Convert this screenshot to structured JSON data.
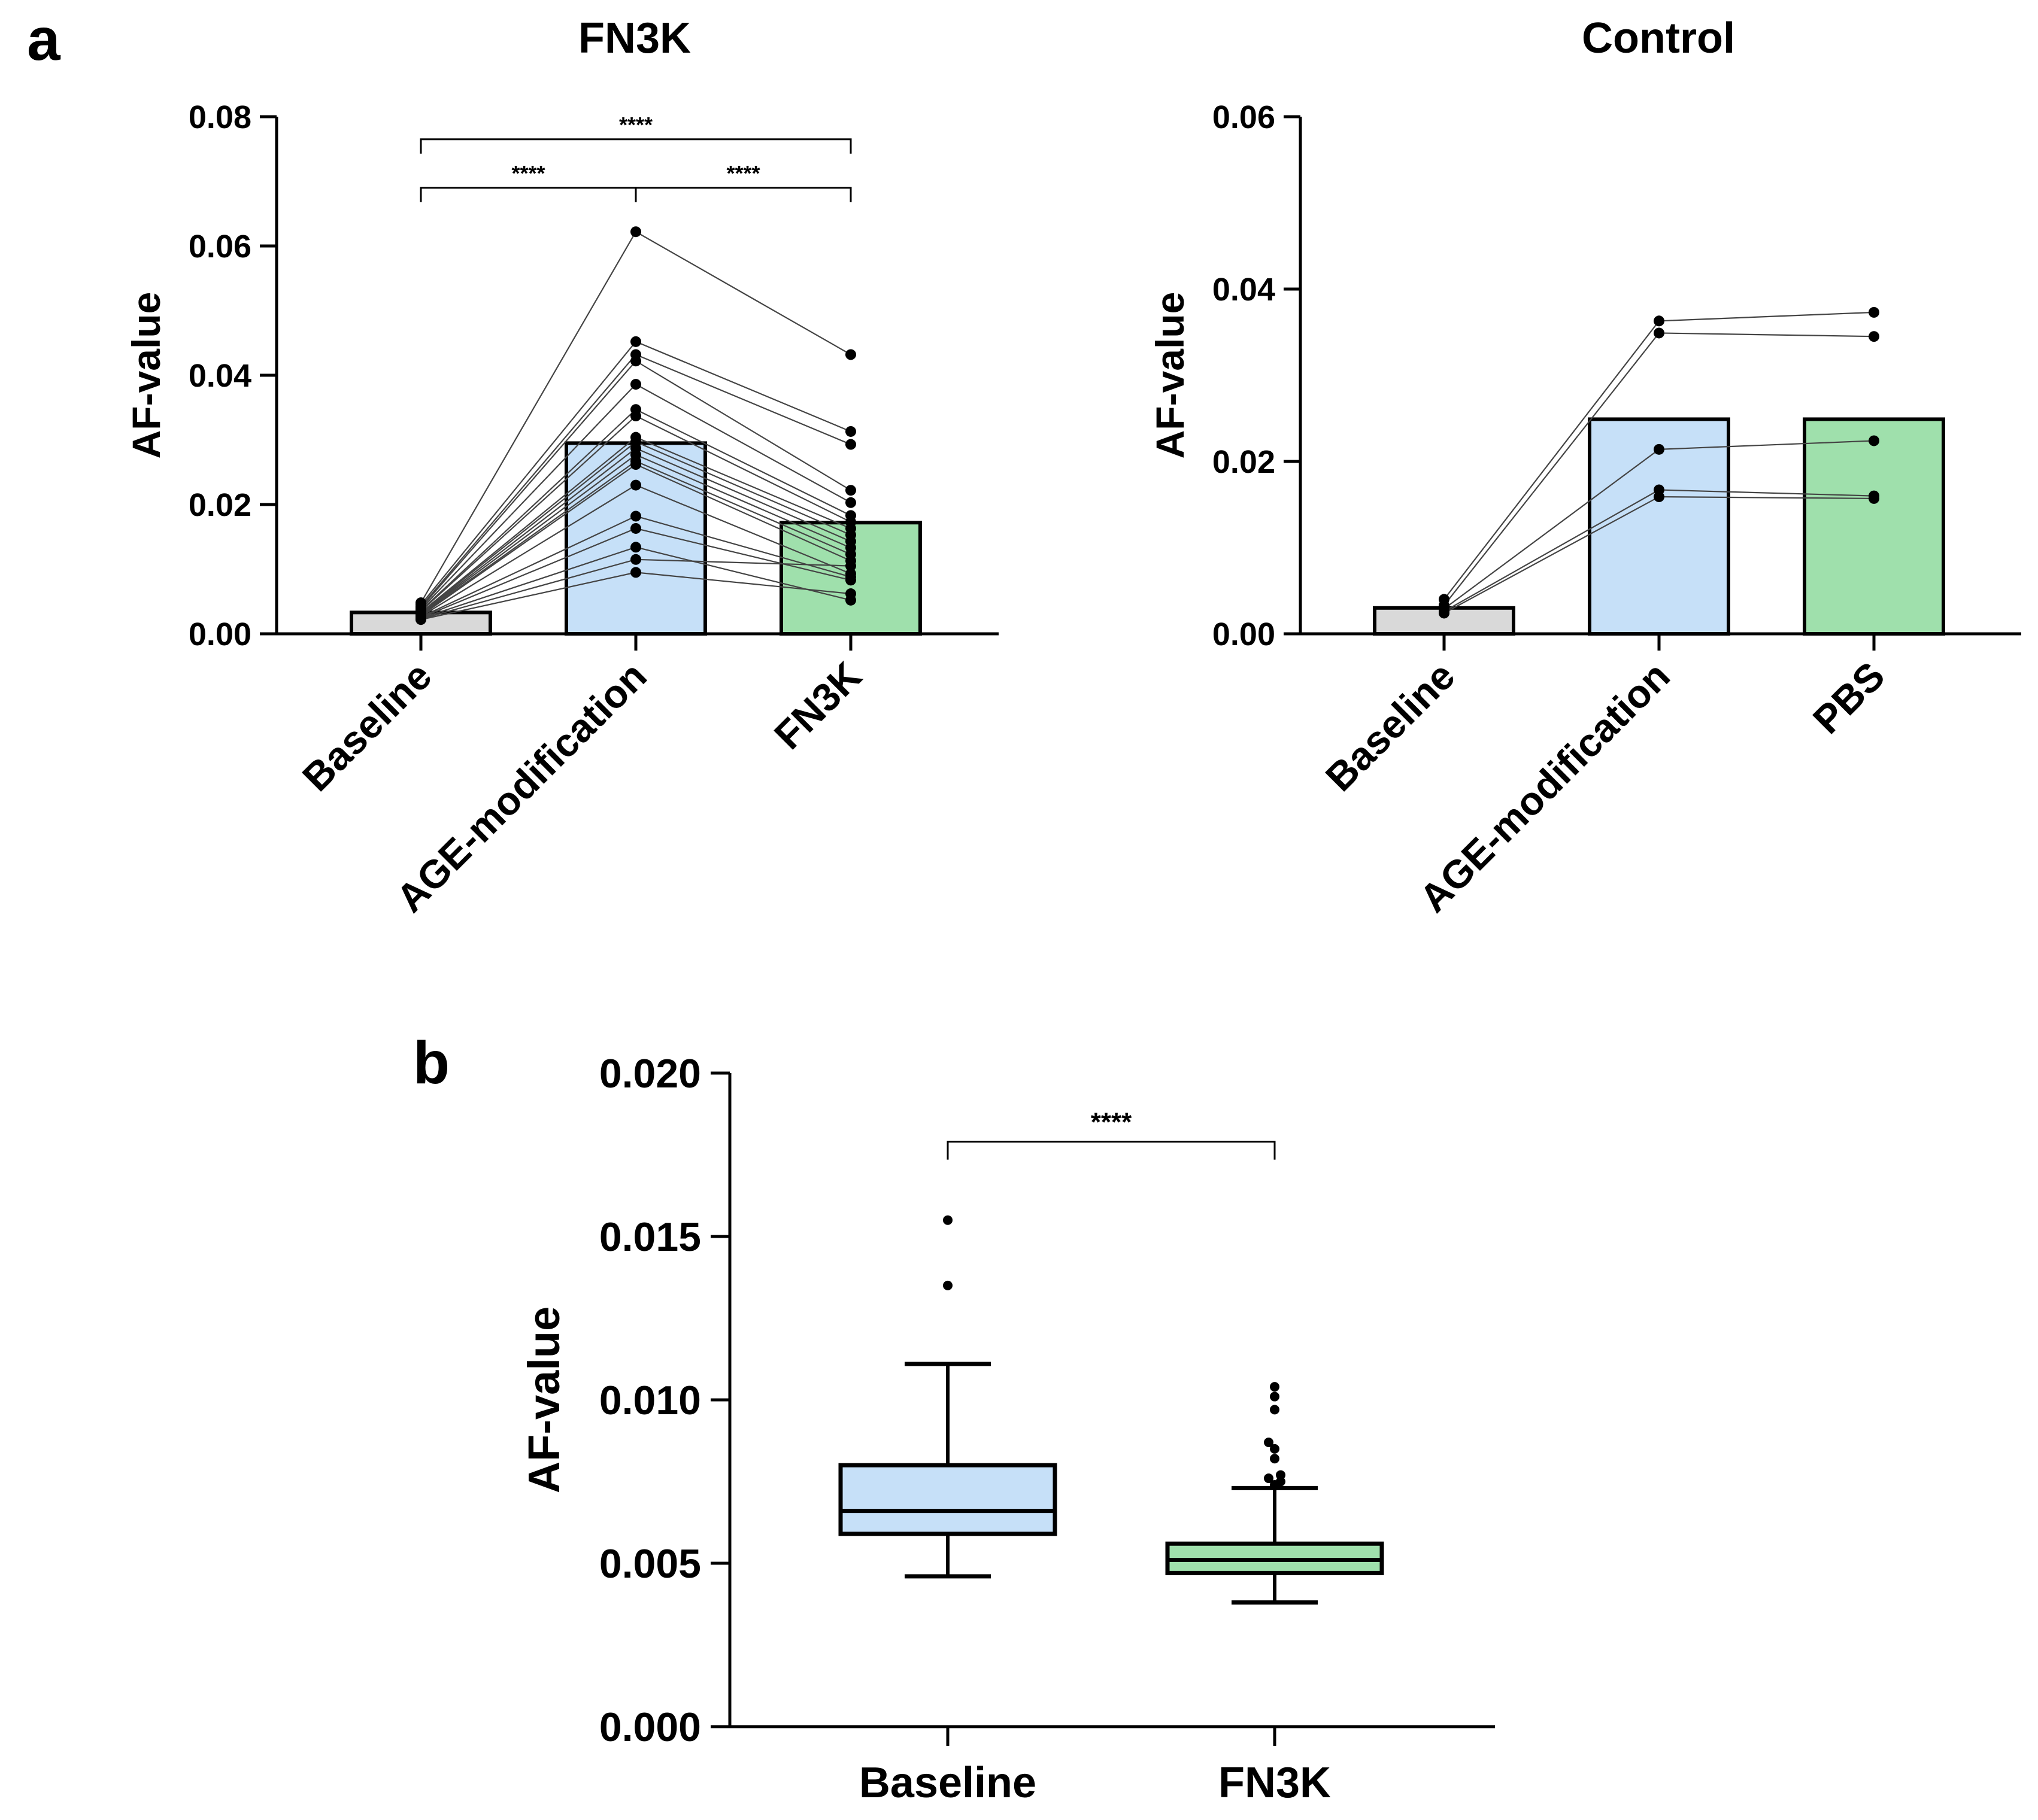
{
  "panel_labels": {
    "a": "a",
    "b": "b"
  },
  "colors": {
    "baseline": "#d9d9d9",
    "age": "#c6e0f8",
    "treat": "#9fe0ac",
    "edge": "#000000",
    "points": "#000000",
    "lines": "#444444"
  },
  "chart_data": [
    {
      "id": "a_fn3k",
      "type": "bar",
      "title": "FN3K",
      "ylabel": "AF-value",
      "ylim": [
        0,
        0.08
      ],
      "yticks": [
        0.0,
        0.02,
        0.04,
        0.06,
        0.08
      ],
      "ytick_labels": [
        "0.00",
        "0.02",
        "0.04",
        "0.06",
        "0.08"
      ],
      "categories": [
        "Baseline",
        "AGE-modification",
        "FN3K"
      ],
      "bar_values": [
        0.0033,
        0.0295,
        0.0172
      ],
      "bar_colors": [
        "baseline",
        "age",
        "treat"
      ],
      "paired_series": [
        [
          0.0048,
          0.0622,
          0.0432
        ],
        [
          0.0045,
          0.0452,
          0.0313
        ],
        [
          0.0042,
          0.0432,
          0.0293
        ],
        [
          0.004,
          0.0422,
          0.0222
        ],
        [
          0.0038,
          0.0386,
          0.0203
        ],
        [
          0.0036,
          0.0347,
          0.0183
        ],
        [
          0.0035,
          0.0337,
          0.0173
        ],
        [
          0.0033,
          0.0304,
          0.0163
        ],
        [
          0.0032,
          0.0297,
          0.0153
        ],
        [
          0.0031,
          0.0287,
          0.0143
        ],
        [
          0.003,
          0.0277,
          0.0133
        ],
        [
          0.0029,
          0.0267,
          0.0123
        ],
        [
          0.0028,
          0.0262,
          0.0113
        ],
        [
          0.0027,
          0.023,
          0.0093
        ],
        [
          0.0026,
          0.0182,
          0.0088
        ],
        [
          0.0025,
          0.0163,
          0.0083
        ],
        [
          0.0024,
          0.0134,
          0.0052
        ],
        [
          0.0023,
          0.0115,
          0.0105
        ],
        [
          0.0022,
          0.0095,
          0.0062
        ]
      ],
      "comparisons": [
        {
          "from": 0,
          "to": 2,
          "level": 0.0765,
          "label": "****"
        },
        {
          "from": 0,
          "to": 1,
          "level": 0.069,
          "label": "****"
        },
        {
          "from": 1,
          "to": 2,
          "level": 0.069,
          "label": "****"
        }
      ]
    },
    {
      "id": "a_control",
      "type": "bar",
      "title": "Control",
      "ylabel": "AF-value",
      "ylim": [
        0,
        0.06
      ],
      "yticks": [
        0.0,
        0.02,
        0.04,
        0.06
      ],
      "ytick_labels": [
        "0.00",
        "0.02",
        "0.04",
        "0.06"
      ],
      "categories": [
        "Baseline",
        "AGE-modification",
        "PBS"
      ],
      "bar_values": [
        0.003,
        0.0249,
        0.0249
      ],
      "bar_colors": [
        "baseline",
        "age",
        "treat"
      ],
      "paired_series": [
        [
          0.004,
          0.0363,
          0.0373
        ],
        [
          0.0033,
          0.0349,
          0.0345
        ],
        [
          0.0029,
          0.0214,
          0.0224
        ],
        [
          0.0026,
          0.0167,
          0.016
        ],
        [
          0.0024,
          0.0159,
          0.0157
        ]
      ],
      "comparisons": []
    },
    {
      "id": "b",
      "type": "box",
      "ylabel": "AF-value",
      "ylim": [
        0,
        0.02
      ],
      "yticks": [
        0.0,
        0.005,
        0.01,
        0.015,
        0.02
      ],
      "ytick_labels": [
        "0.000",
        "0.005",
        "0.010",
        "0.015",
        "0.020"
      ],
      "categories": [
        "Baseline",
        "FN3K"
      ],
      "box_colors": [
        "age",
        "treat"
      ],
      "boxes": [
        {
          "whisker_low": 0.0046,
          "q1": 0.0059,
          "median": 0.0066,
          "q3": 0.008,
          "whisker_high": 0.0111,
          "outliers": [
            0.0135,
            0.0155
          ]
        },
        {
          "whisker_low": 0.0038,
          "q1": 0.0047,
          "median": 0.0051,
          "q3": 0.0056,
          "whisker_high": 0.0073,
          "outliers": [
            0.0074,
            0.0075,
            0.0076,
            0.0077,
            0.0082,
            0.0085,
            0.0087,
            0.0097,
            0.0101,
            0.0104
          ]
        }
      ],
      "comparisons": [
        {
          "from": 0,
          "to": 1,
          "level": 0.0179,
          "label": "****"
        }
      ]
    }
  ]
}
